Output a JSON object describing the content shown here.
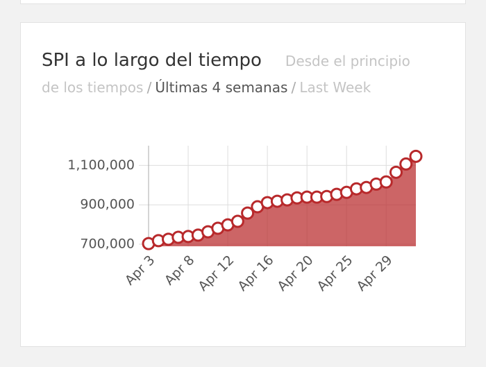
{
  "filters": {
    "options": [
      "Desde el principio de los tiempos",
      "Últimas 4 semanas",
      "Last Week"
    ],
    "separator": "/",
    "active": 1
  },
  "chart_data": {
    "type": "area",
    "title": "SPI a lo largo del tiempo",
    "categories": [
      "Apr 3",
      null,
      null,
      null,
      "Apr 8",
      null,
      null,
      null,
      "Apr 12",
      null,
      null,
      null,
      "Apr 16",
      null,
      null,
      null,
      "Apr 20",
      null,
      null,
      null,
      "Apr 25",
      null,
      null,
      null,
      "Apr 29",
      null,
      null,
      null
    ],
    "values": [
      703000,
      718000,
      725000,
      735000,
      739000,
      746000,
      763000,
      781000,
      798000,
      816000,
      858000,
      890000,
      911000,
      918000,
      925000,
      935000,
      939000,
      939000,
      942000,
      953000,
      963000,
      981000,
      988000,
      1005000,
      1016000,
      1065000,
      1107000,
      1146000
    ],
    "color": "#b8292b",
    "ylim": [
      700000,
      1200000
    ],
    "yticks": [
      {
        "value": 700000,
        "label": "700,000"
      },
      {
        "value": 900000,
        "label": "900,000"
      },
      {
        "value": 1100000,
        "label": "1,100,000"
      }
    ],
    "grid": true
  }
}
